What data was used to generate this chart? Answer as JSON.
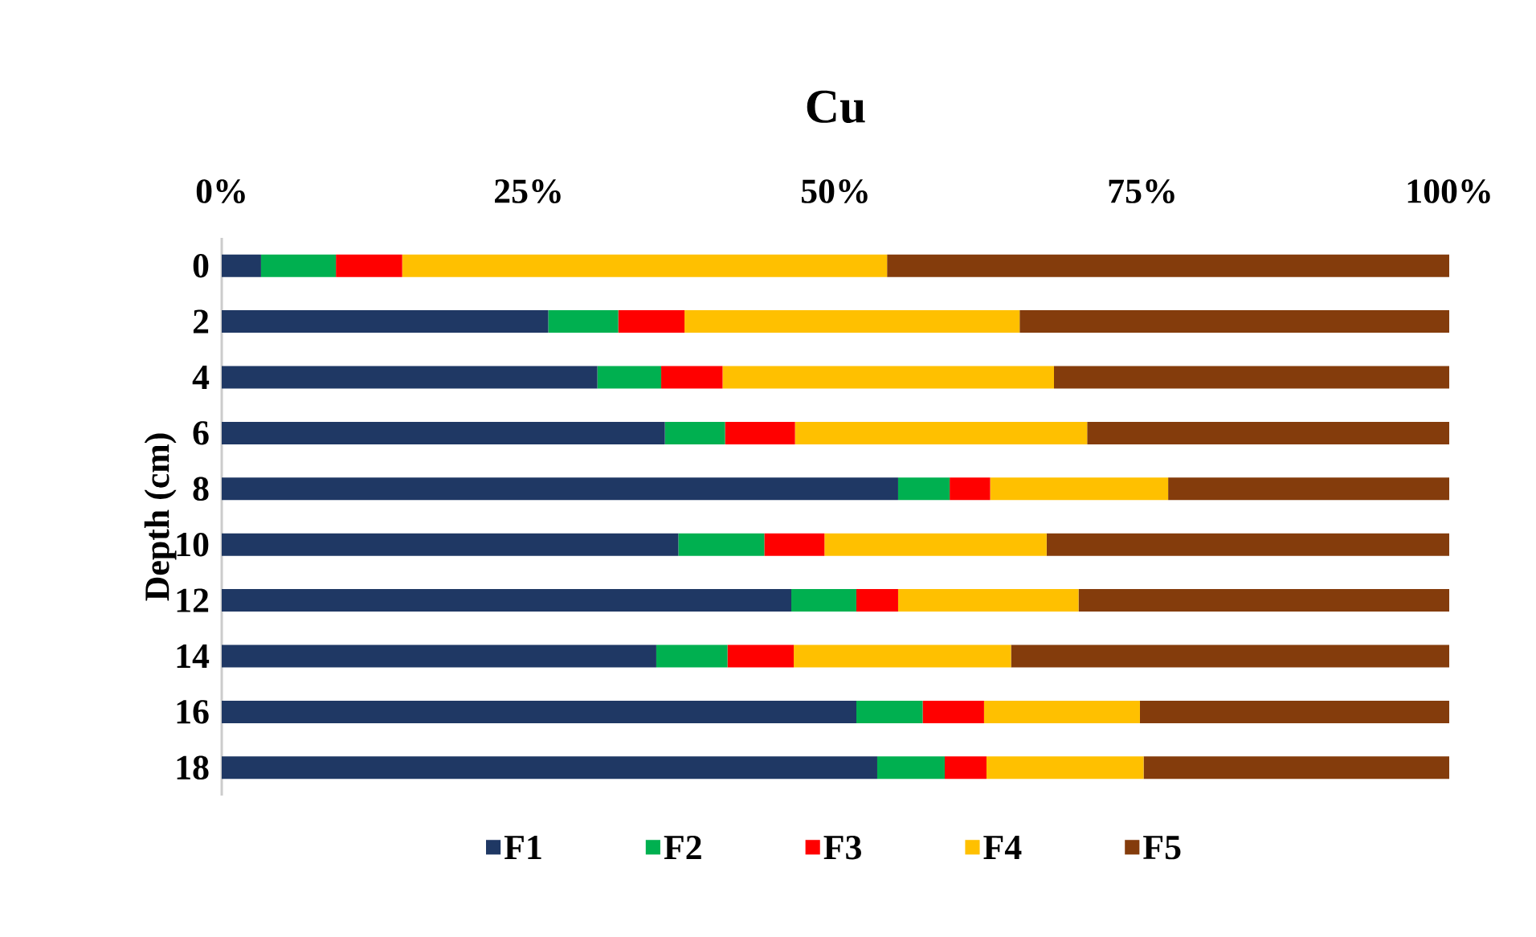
{
  "chart_data": {
    "type": "bar",
    "orientation": "horizontal",
    "stacked": true,
    "title": "Cu",
    "ylabel": "Depth (cm)",
    "categories": [
      "0",
      "2",
      "4",
      "6",
      "8",
      "10",
      "12",
      "14",
      "16",
      "18"
    ],
    "xlim": [
      0,
      100
    ],
    "xticks": [
      {
        "value": 0,
        "label": "0%"
      },
      {
        "value": 25,
        "label": "25%"
      },
      {
        "value": 50,
        "label": "50%"
      },
      {
        "value": 75,
        "label": "75%"
      },
      {
        "value": 100,
        "label": "100%"
      }
    ],
    "legend": "bottom",
    "series": [
      {
        "name": "F1",
        "color": "#1f3864",
        "values": [
          3.2,
          26.6,
          30.6,
          36.1,
          55.1,
          37.2,
          46.4,
          35.4,
          51.7,
          53.4
        ]
      },
      {
        "name": "F2",
        "color": "#00b050",
        "values": [
          6.1,
          5.7,
          5.2,
          4.9,
          4.2,
          7.0,
          5.3,
          5.8,
          5.4,
          5.5
        ]
      },
      {
        "name": "F3",
        "color": "#ff0000",
        "values": [
          5.4,
          5.4,
          5.0,
          5.7,
          3.3,
          4.9,
          3.4,
          5.4,
          5.0,
          3.4
        ]
      },
      {
        "name": "F4",
        "color": "#ffc000",
        "values": [
          39.5,
          27.3,
          27.0,
          23.8,
          14.5,
          18.1,
          14.7,
          17.7,
          12.7,
          12.8
        ]
      },
      {
        "name": "F5",
        "color": "#843c0c",
        "values": [
          45.8,
          35.0,
          32.2,
          29.5,
          22.9,
          32.8,
          30.2,
          35.7,
          25.2,
          24.9
        ]
      }
    ]
  }
}
